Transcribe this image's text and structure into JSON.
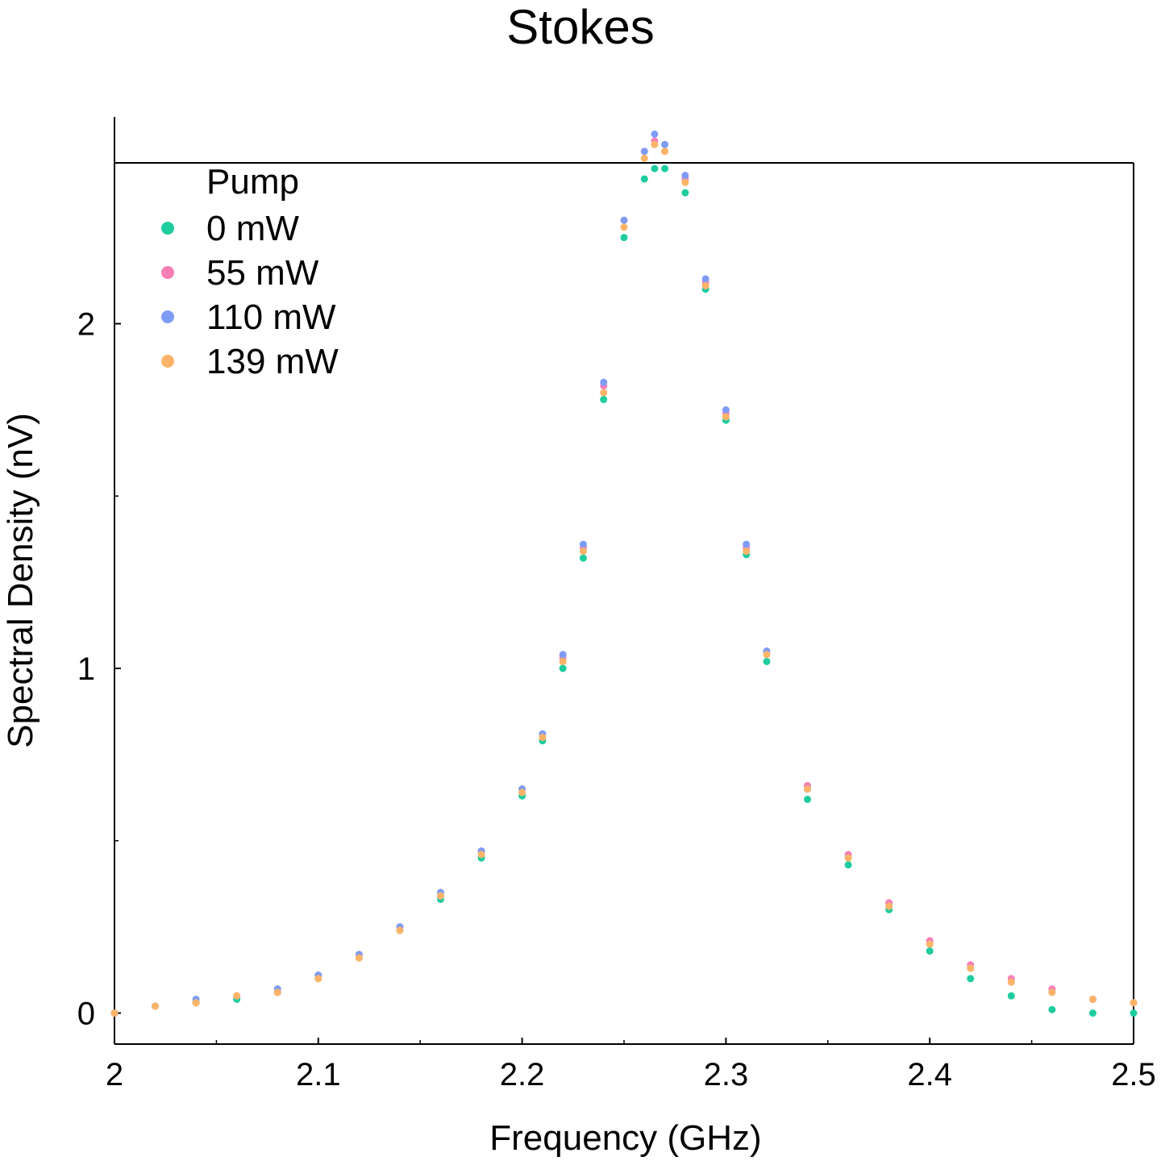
{
  "chart_data": {
    "type": "scatter",
    "title": "Stokes",
    "xlabel": "Frequency (GHz)",
    "ylabel": "Spectral Density (nV)",
    "xlim": [
      2.0,
      2.5
    ],
    "ylim": [
      -0.09,
      2.6
    ],
    "x_ticks": [
      2.0,
      2.1,
      2.2,
      2.3,
      2.4,
      2.5
    ],
    "x_tick_labels": [
      "2",
      "2.1",
      "2.2",
      "2.3",
      "2.4",
      "2.5"
    ],
    "x_minor_ticks": [
      2.05,
      2.15,
      2.25,
      2.35,
      2.45
    ],
    "y_ticks": [
      0,
      1,
      2
    ],
    "y_tick_labels": [
      "0",
      "1",
      "2"
    ],
    "y_minor_ticks": [
      0.5,
      1.5
    ],
    "grid": false,
    "legend": {
      "title": "Pump",
      "placement": "top-left"
    },
    "series": [
      {
        "name": "0 mW",
        "color": "#1fcc9e",
        "x": [
          2.0,
          2.02,
          2.04,
          2.06,
          2.08,
          2.1,
          2.12,
          2.14,
          2.16,
          2.18,
          2.2,
          2.21,
          2.22,
          2.23,
          2.24,
          2.25,
          2.26,
          2.265,
          2.27,
          2.28,
          2.29,
          2.3,
          2.31,
          2.32,
          2.34,
          2.36,
          2.38,
          2.4,
          2.42,
          2.44,
          2.46,
          2.48,
          2.5
        ],
        "y": [
          0.0,
          0.02,
          0.03,
          0.04,
          0.06,
          0.1,
          0.16,
          0.24,
          0.33,
          0.45,
          0.63,
          0.79,
          1.0,
          1.32,
          1.78,
          2.25,
          2.42,
          2.45,
          2.45,
          2.38,
          2.1,
          1.72,
          1.33,
          1.02,
          0.62,
          0.43,
          0.3,
          0.18,
          0.1,
          0.05,
          0.01,
          0.0,
          0.0
        ]
      },
      {
        "name": "55 mW",
        "color": "#f77fb8",
        "x": [
          2.0,
          2.02,
          2.04,
          2.06,
          2.08,
          2.1,
          2.12,
          2.14,
          2.16,
          2.18,
          2.2,
          2.21,
          2.22,
          2.23,
          2.24,
          2.25,
          2.26,
          2.265,
          2.27,
          2.28,
          2.29,
          2.3,
          2.31,
          2.32,
          2.34,
          2.36,
          2.38,
          2.4,
          2.42,
          2.44,
          2.46,
          2.48,
          2.5
        ],
        "y": [
          0.0,
          0.02,
          0.03,
          0.05,
          0.06,
          0.11,
          0.17,
          0.25,
          0.34,
          0.47,
          0.65,
          0.8,
          1.03,
          1.35,
          1.82,
          2.3,
          2.5,
          2.53,
          2.5,
          2.42,
          2.12,
          1.74,
          1.35,
          1.05,
          0.66,
          0.46,
          0.32,
          0.21,
          0.14,
          0.1,
          0.07,
          0.04,
          0.03
        ]
      },
      {
        "name": "110 mW",
        "color": "#7f9cf5",
        "x": [
          2.0,
          2.02,
          2.04,
          2.06,
          2.08,
          2.1,
          2.12,
          2.14,
          2.16,
          2.18,
          2.2,
          2.21,
          2.22,
          2.23,
          2.24,
          2.25,
          2.26,
          2.265,
          2.27,
          2.28,
          2.29,
          2.3,
          2.31,
          2.32,
          2.34,
          2.36,
          2.38,
          2.4,
          2.42,
          2.44,
          2.46,
          2.48,
          2.5
        ],
        "y": [
          0.0,
          0.02,
          0.04,
          0.05,
          0.07,
          0.11,
          0.17,
          0.25,
          0.35,
          0.47,
          0.65,
          0.81,
          1.04,
          1.36,
          1.83,
          2.3,
          2.5,
          2.55,
          2.52,
          2.43,
          2.13,
          1.75,
          1.36,
          1.05,
          0.65,
          0.45,
          0.31,
          0.2,
          0.13,
          0.09,
          0.06,
          0.04,
          0.03
        ]
      },
      {
        "name": "139 mW",
        "color": "#fdb468",
        "x": [
          2.0,
          2.02,
          2.04,
          2.06,
          2.08,
          2.1,
          2.12,
          2.14,
          2.16,
          2.18,
          2.2,
          2.21,
          2.22,
          2.23,
          2.24,
          2.25,
          2.26,
          2.265,
          2.27,
          2.28,
          2.29,
          2.3,
          2.31,
          2.32,
          2.34,
          2.36,
          2.38,
          2.4,
          2.42,
          2.44,
          2.46,
          2.48,
          2.5
        ],
        "y": [
          0.0,
          0.02,
          0.03,
          0.05,
          0.06,
          0.1,
          0.16,
          0.24,
          0.34,
          0.46,
          0.64,
          0.8,
          1.02,
          1.34,
          1.8,
          2.28,
          2.48,
          2.52,
          2.5,
          2.41,
          2.11,
          1.73,
          1.34,
          1.04,
          0.65,
          0.45,
          0.31,
          0.2,
          0.13,
          0.09,
          0.06,
          0.04,
          0.03
        ]
      }
    ]
  }
}
